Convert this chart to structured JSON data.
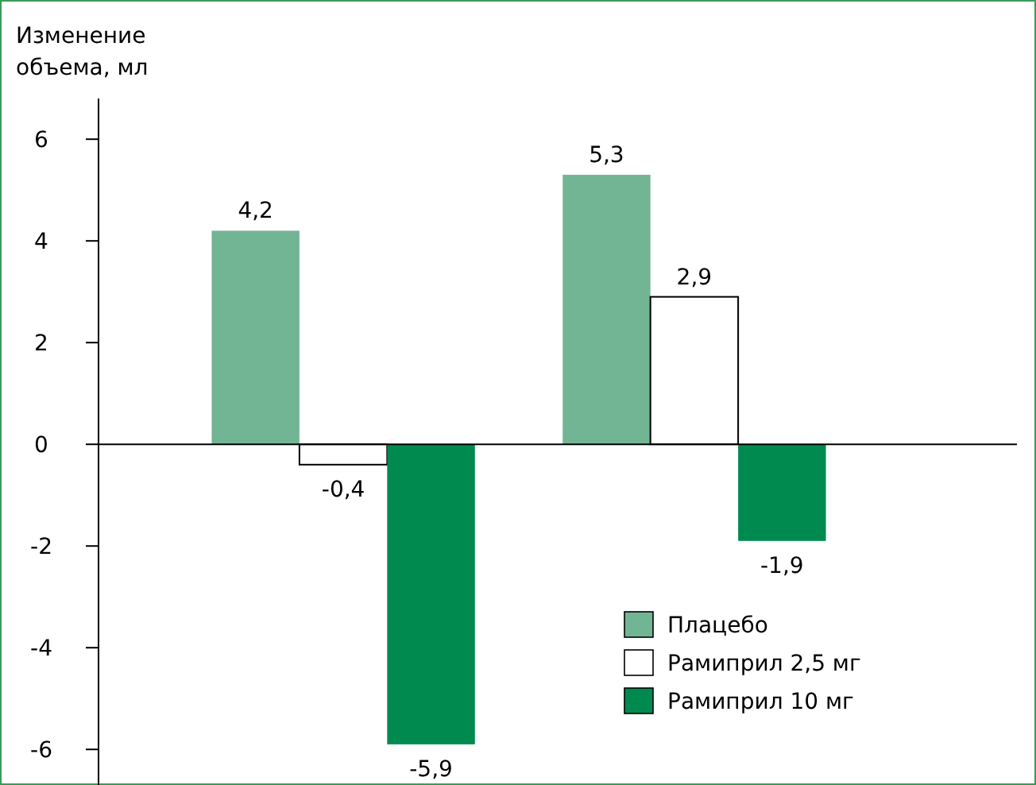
{
  "chart_data": {
    "type": "bar",
    "ylabel": "Изменение объема, мл",
    "categories": [
      null,
      null
    ],
    "series": [
      {
        "name": "Плацебо",
        "color": "#72b595",
        "values": [
          4.2,
          5.3
        ],
        "value_labels": [
          "4,2",
          "5,3"
        ]
      },
      {
        "name": "Рамиприл 2,5 мг",
        "color": "#ffffff",
        "values": [
          -0.4,
          2.9
        ],
        "value_labels": [
          "-0,4",
          "2,9"
        ]
      },
      {
        "name": "Рамиприл 10 мг",
        "color": "#008a50",
        "values": [
          -5.9,
          -1.9
        ],
        "value_labels": [
          "-5,9",
          "-1,9"
        ]
      }
    ],
    "ylim": [
      -6.7,
      6.8
    ],
    "yticks": [
      -6,
      -4,
      -2,
      0,
      2,
      4,
      6
    ],
    "legend": "bottom right"
  }
}
